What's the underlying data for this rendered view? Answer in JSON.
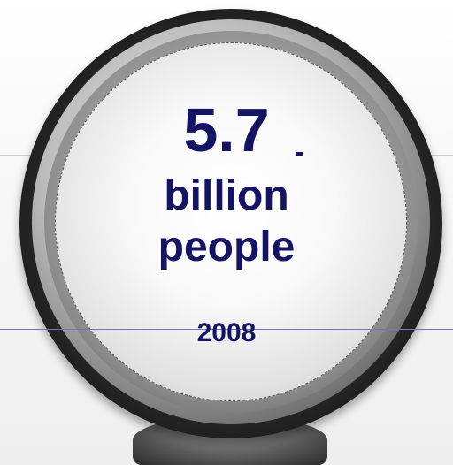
{
  "graphic": {
    "value": "5.7",
    "unit_line1": "billion",
    "unit_line2": "people",
    "year": "2008"
  },
  "colors": {
    "text": "#141463",
    "ring_dark": "#050505",
    "face_light": "#ffffff"
  }
}
